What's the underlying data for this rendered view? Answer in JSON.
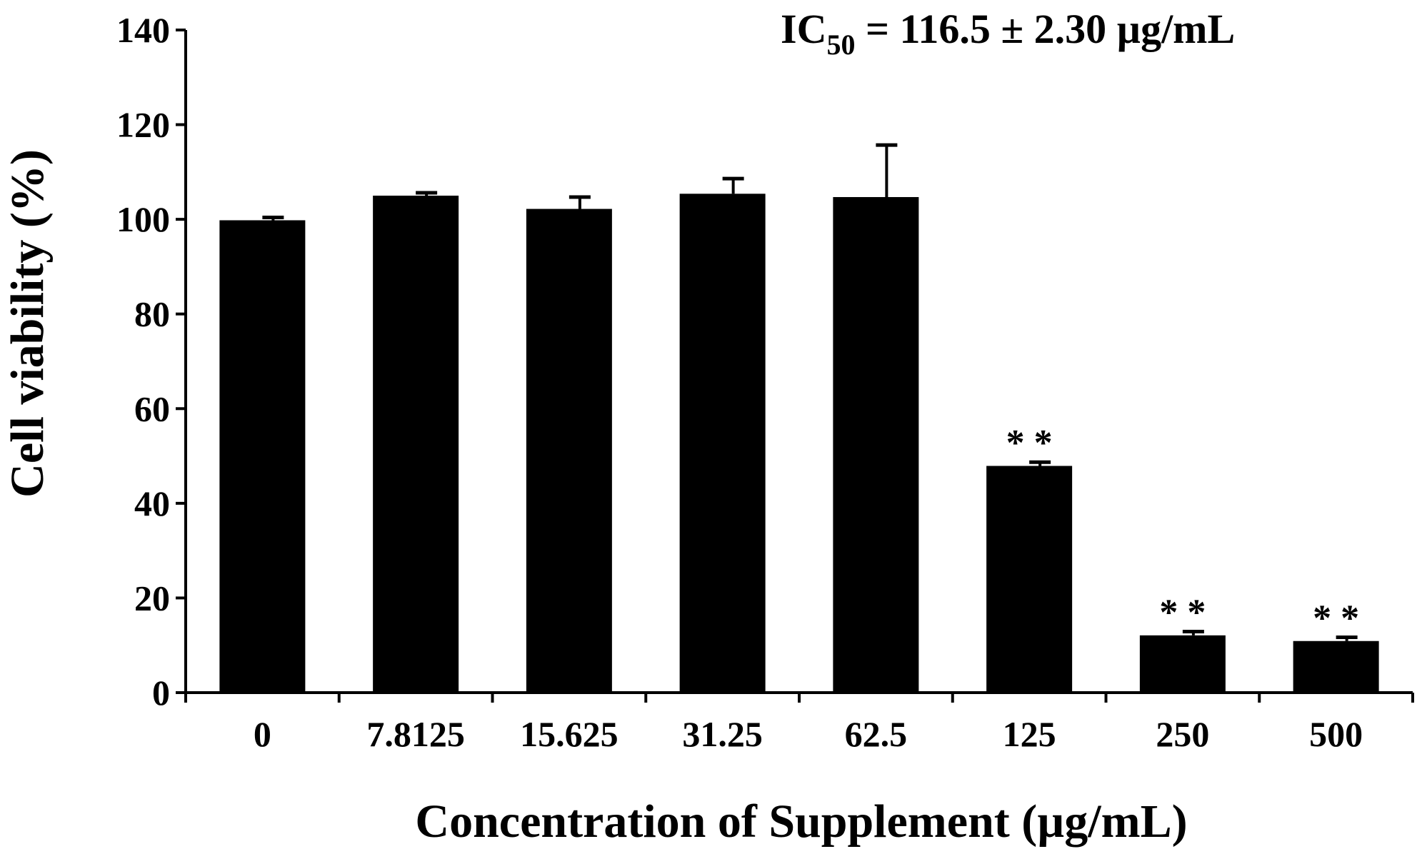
{
  "chart_data": {
    "type": "bar",
    "annotation": {
      "prefix": "IC",
      "subscript": "50",
      "suffix": " = 116.5 ± 2.30 µg/mL"
    },
    "xlabel": "Concentration of Supplement (µg/mL)",
    "ylabel": "Cell viability (%)",
    "ylim": [
      0,
      140
    ],
    "yticks": [
      0,
      20,
      40,
      60,
      80,
      100,
      120,
      140
    ],
    "categories": [
      "0",
      "7.8125",
      "15.625",
      "31.25",
      "62.5",
      "125",
      "250",
      "500"
    ],
    "values": [
      99.8,
      105.0,
      102.2,
      105.4,
      104.7,
      47.9,
      12.1,
      10.9
    ],
    "errors": [
      0.6,
      0.6,
      2.5,
      3.2,
      11.0,
      0.8,
      0.8,
      0.8
    ],
    "significance": [
      "",
      "",
      "",
      "",
      "",
      "* *",
      "* *",
      "* *"
    ],
    "bar_color": "#000000",
    "grid": false
  }
}
